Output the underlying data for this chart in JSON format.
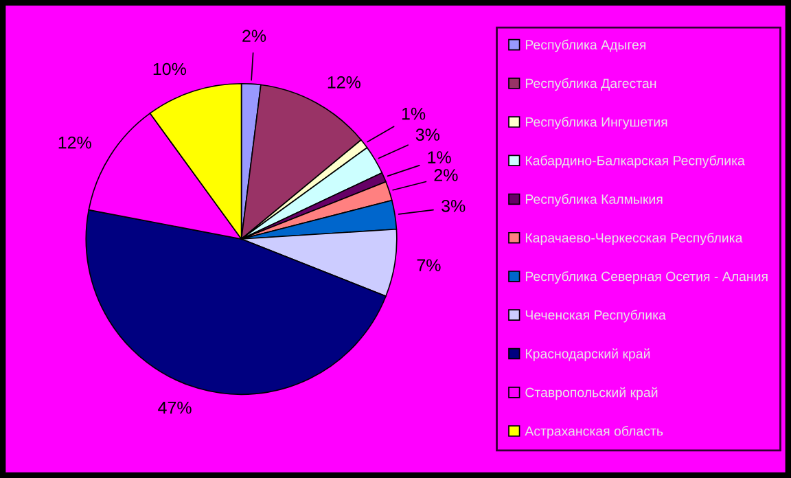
{
  "chart_data": {
    "type": "pie",
    "categories": [
      "Республика Адыгея",
      "Республика Дагестан",
      "Республика Ингушетия",
      "Кабардино-Балкарская Республика",
      "Республика Калмыкия",
      "Карачаево-Черкесская Республика",
      "Республика Северная Осетия - Алания",
      "Чеченская Республика",
      "Краснодарский край",
      "Ставропольский край",
      "Астраханская область"
    ],
    "values": [
      2,
      12,
      1,
      3,
      1,
      2,
      3,
      7,
      47,
      12,
      10
    ],
    "value_labels": [
      "2%",
      "12%",
      "1%",
      "3%",
      "1%",
      "2%",
      "3%",
      "7%",
      "47%",
      "12%",
      "10%"
    ],
    "colors": [
      "#9999ff",
      "#993366",
      "#ffffcc",
      "#ccffff",
      "#660066",
      "#ff8080",
      "#0066cc",
      "#ccccff",
      "#000080",
      "#ff00ff",
      "#ffff00"
    ],
    "legend": "right"
  }
}
